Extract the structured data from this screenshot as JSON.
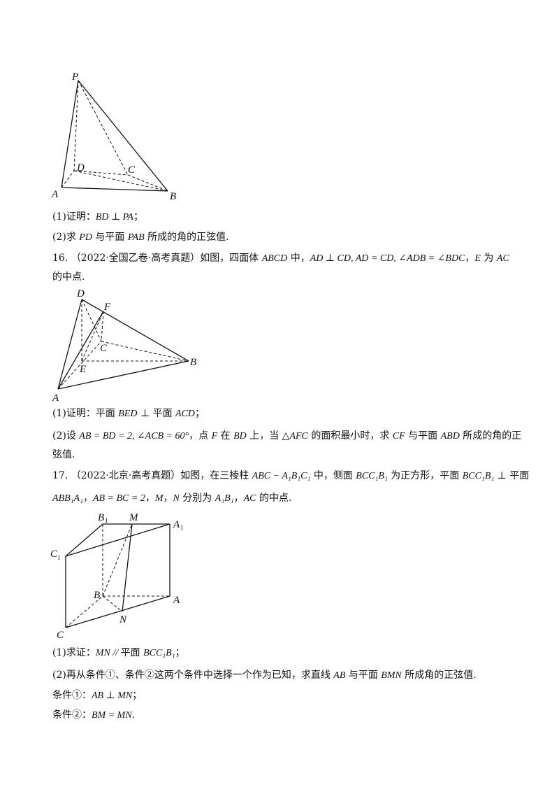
{
  "fig1": {
    "labels": {
      "P": "P",
      "D": "D",
      "C": "C",
      "A": "A",
      "B": "B"
    }
  },
  "p15": {
    "q1_prefix": "(1)证明：",
    "q1_math": "BD ⊥ PA",
    "q1_end": "；",
    "q2_prefix": "(2)求 ",
    "q2_m1": "PD",
    "q2_mid": " 与平面 ",
    "q2_m2": "PAB",
    "q2_end": " 所成的角的正弦值."
  },
  "p16": {
    "num": "16.",
    "source": "（2022·全国乙卷·高考真题）",
    "t1": "如图，四面体 ",
    "m1": "ABCD",
    "t2": " 中，",
    "m2": "AD ⊥ CD, AD = CD, ∠ADB = ∠BDC",
    "t3": "，",
    "m3": "E",
    "t4": " 为 ",
    "m4": "AC",
    "t5": "的中点.",
    "q1_prefix": "(1)证明：平面 ",
    "q1_m1": "BED",
    "q1_mid": " ⊥ 平面 ",
    "q1_m2": "ACD",
    "q1_end": "；",
    "q2_a": "(2)设 ",
    "q2_m1": "AB = BD = 2, ∠ACB = 60°",
    "q2_b": "，点 ",
    "q2_m2": "F",
    "q2_c": " 在 ",
    "q2_m3": "BD",
    "q2_d": " 上，当 ",
    "q2_m4": "△AFC",
    "q2_e": " 的面积最小时，求 ",
    "q2_m5": "CF",
    "q2_f": " 与平面 ",
    "q2_m6": "ABD",
    "q2_g": " 所成的角的正",
    "q2_cont": "弦值."
  },
  "fig2": {
    "labels": {
      "D": "D",
      "F": "F",
      "C": "C",
      "E": "E",
      "A": "A",
      "B": "B"
    }
  },
  "p17": {
    "num": "17.",
    "source": "（2022·北京·高考真题）",
    "t1": "如图，在三棱柱 ",
    "m1": "ABC − A₁B₁C₁",
    "t2": " 中，侧面 ",
    "m2": "BCC₁B₁",
    "t3": " 为正方形，平面 ",
    "m3": "BCC₁B₁",
    "t4": " ⊥ 平面",
    "m5": "ABB₁A₁",
    "t5": "，",
    "m6": "AB = BC = 2",
    "t6": "，",
    "m7": "M",
    "t7": "，",
    "m8": "N",
    "t8": " 分别为 ",
    "m9": "A₁B₁",
    "t9": "，",
    "m10": "AC",
    "t10": " 的中点.",
    "q1_prefix": "(1)求证：",
    "q1_m1": "MN // ",
    "q1_mid": "平面 ",
    "q1_m2": "BCC₁B₁",
    "q1_end": "；",
    "q2_a": "(2)再从条件①、条件②这两个条件中选择一个作为已知，求直线 ",
    "q2_m1": "AB",
    "q2_b": " 与平面 ",
    "q2_m2": "BMN",
    "q2_c": " 所成角的正弦值.",
    "c1_prefix": "条件①：",
    "c1_math": "AB ⊥ MN",
    "c1_end": "；",
    "c2_prefix": "条件②：",
    "c2_math": "BM = MN",
    "c2_end": "."
  },
  "fig3": {
    "labels": {
      "B1": "B",
      "M": "M",
      "A1": "A",
      "C1": "C",
      "B": "B",
      "A": "A",
      "N": "N",
      "C": "C",
      "sub1": "1"
    }
  }
}
